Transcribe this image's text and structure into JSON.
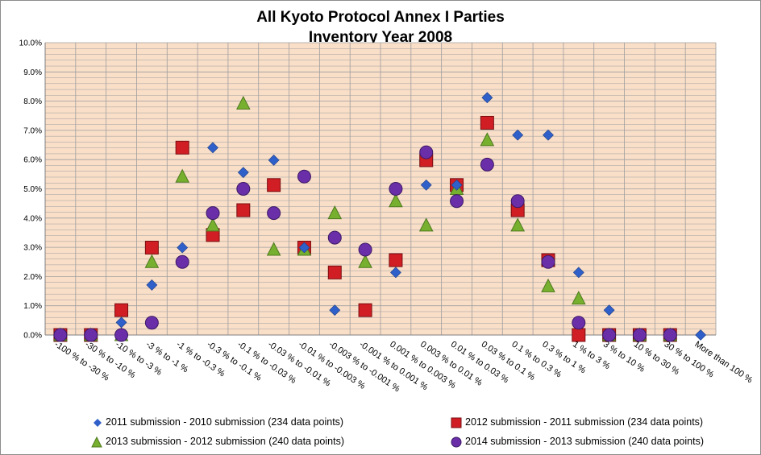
{
  "colors": {
    "plot_background": "#F9DEC8",
    "gridline": "#9E9E9E",
    "series": [
      "#2F5FC8",
      "#D01E24",
      "#77B02F",
      "#6A2FA8"
    ]
  },
  "chart_data": {
    "type": "scatter",
    "title": [
      "All Kyoto Protocol Annex I Parties",
      "Inventory  Year 2008"
    ],
    "xlabel": "",
    "ylabel": "",
    "ylim": [
      0,
      10
    ],
    "y_ticks": [
      "0.0%",
      "1.0%",
      "2.0%",
      "3.0%",
      "4.0%",
      "5.0%",
      "6.0%",
      "7.0%",
      "8.0%",
      "9.0%",
      "10.0%"
    ],
    "grid": true,
    "legend_position": "bottom",
    "categories": [
      "-100 % to -30 %",
      "-30 % to -10 %",
      "-10 % to -3 %",
      "-3 % to -1 %",
      "-1 % to -0.3 %",
      "-0.3 % to -0.1 %",
      "-0.1 % to -0.03 %",
      "-0.03 % to -0.01 %",
      "-0.01 % to -0.003 %",
      "-0.003 % to -0.001 %",
      "-0.001 % to 0.001 %",
      "0.001 % to 0.003 %",
      "0.003 % to 0.01 %",
      "0.01 % to 0.03 %",
      "0.03 % to 0.1 %",
      "0.1 % to 0.3 %",
      "0.3 % to 1 %",
      "1 % to 3 %",
      "3 % to 10 %",
      "10 % to 30 %",
      "30 % to 100 %",
      "More than 100 %"
    ],
    "series": [
      {
        "name": "2011 submission - 2010 submission (234 data points)",
        "marker": "diamond",
        "values": [
          0.0,
          0.0,
          0.43,
          1.71,
          2.99,
          6.41,
          5.56,
          5.98,
          2.99,
          0.85,
          null,
          2.14,
          5.13,
          5.13,
          8.12,
          6.84,
          6.84,
          2.14,
          0.85,
          0.0,
          0.0,
          0.0
        ]
      },
      {
        "name": "2012 submission - 2011 submission (234 data points)",
        "marker": "square",
        "values": [
          0.0,
          0.0,
          0.85,
          2.99,
          6.41,
          3.42,
          4.27,
          5.13,
          2.99,
          2.14,
          0.85,
          2.56,
          5.98,
          5.13,
          7.26,
          4.27,
          2.56,
          0.0,
          0.0,
          0.0,
          0.0,
          null
        ]
      },
      {
        "name": "2013 submission - 2012 submission (240 data points)",
        "marker": "triangle",
        "values": [
          0.0,
          0.0,
          0.0,
          2.5,
          5.42,
          3.75,
          7.92,
          2.92,
          2.92,
          4.17,
          2.5,
          4.58,
          3.75,
          5.0,
          6.67,
          3.75,
          1.67,
          1.25,
          0.0,
          0.0,
          0.0,
          null
        ]
      },
      {
        "name": "2014 submission - 2013 submission (240 data points)",
        "marker": "circle",
        "values": [
          0.0,
          0.0,
          0.0,
          0.42,
          2.5,
          4.17,
          5.0,
          4.17,
          5.42,
          3.33,
          2.92,
          5.0,
          6.25,
          4.58,
          5.83,
          4.58,
          2.5,
          0.42,
          0.0,
          0.0,
          0.0,
          null
        ]
      }
    ]
  }
}
